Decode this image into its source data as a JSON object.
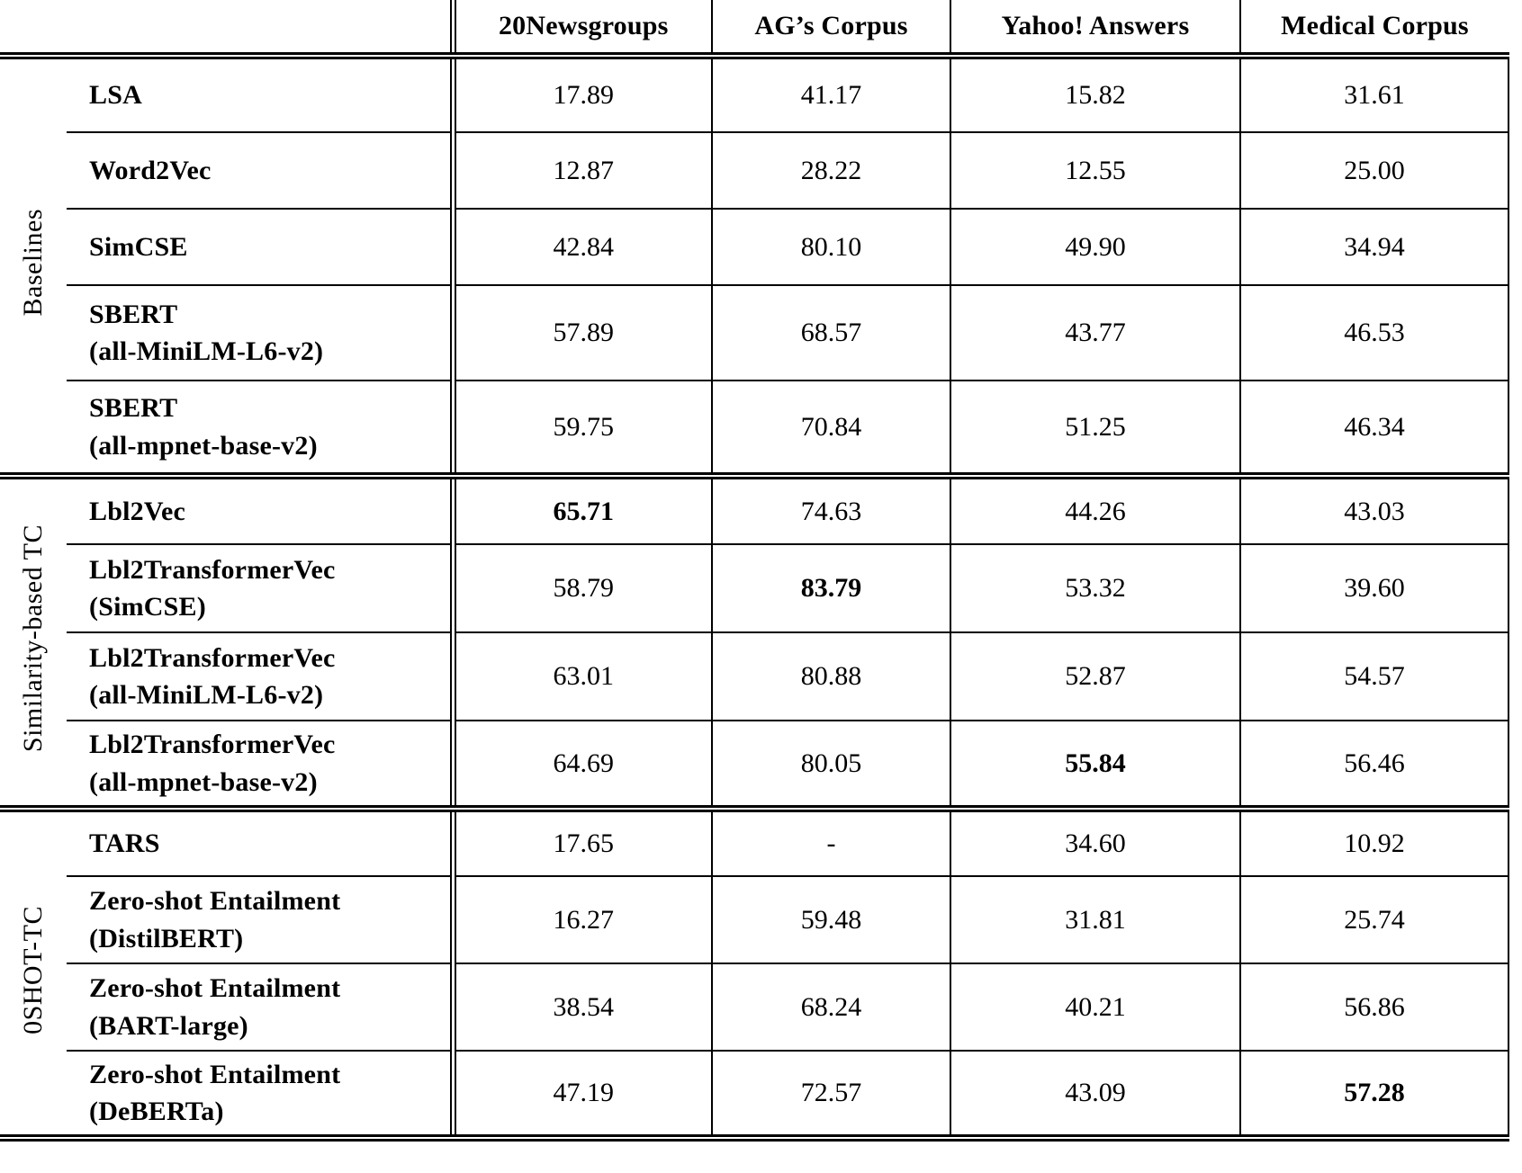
{
  "table": {
    "header": {
      "columns": [
        "20Newsgroups",
        "AG’s Corpus",
        "Yahoo! Answers",
        "Medical Corpus"
      ]
    },
    "groups": [
      {
        "label": "Baselines",
        "rows": [
          {
            "method": "LSA",
            "values": [
              "17.89",
              "41.17",
              "15.82",
              "31.61"
            ],
            "bold_cols": []
          },
          {
            "method": "Word2Vec",
            "values": [
              "12.87",
              "28.22",
              "12.55",
              "25.00"
            ],
            "bold_cols": []
          },
          {
            "method": "SimCSE",
            "values": [
              "42.84",
              "80.10",
              "49.90",
              "34.94"
            ],
            "bold_cols": []
          },
          {
            "method": "SBERT\n(all-MiniLM-L6-v2)",
            "values": [
              "57.89",
              "68.57",
              "43.77",
              "46.53"
            ],
            "bold_cols": []
          },
          {
            "method": "SBERT\n(all-mpnet-base-v2)",
            "values": [
              "59.75",
              "70.84",
              "51.25",
              "46.34"
            ],
            "bold_cols": []
          }
        ]
      },
      {
        "label": "Similarity-based TC",
        "rows": [
          {
            "method": "Lbl2Vec",
            "values": [
              "65.71",
              "74.63",
              "44.26",
              "43.03"
            ],
            "bold_cols": [
              0
            ]
          },
          {
            "method": "Lbl2TransformerVec\n(SimCSE)",
            "values": [
              "58.79",
              "83.79",
              "53.32",
              "39.60"
            ],
            "bold_cols": [
              1
            ]
          },
          {
            "method": "Lbl2TransformerVec\n(all-MiniLM-L6-v2)",
            "values": [
              "63.01",
              "80.88",
              "52.87",
              "54.57"
            ],
            "bold_cols": []
          },
          {
            "method": "Lbl2TransformerVec\n(all-mpnet-base-v2)",
            "values": [
              "64.69",
              "80.05",
              "55.84",
              "56.46"
            ],
            "bold_cols": [
              2
            ]
          }
        ]
      },
      {
        "label": "0SHOT-TC",
        "rows": [
          {
            "method": "TARS",
            "values": [
              "17.65",
              "-",
              "34.60",
              "10.92"
            ],
            "bold_cols": []
          },
          {
            "method": "Zero-shot Entailment\n(DistilBERT)",
            "values": [
              "16.27",
              "59.48",
              "31.81",
              "25.74"
            ],
            "bold_cols": []
          },
          {
            "method": "Zero-shot Entailment\n(BART-large)",
            "values": [
              "38.54",
              "68.24",
              "40.21",
              "56.86"
            ],
            "bold_cols": []
          },
          {
            "method": "Zero-shot Entailment\n(DeBERTa)",
            "values": [
              "47.19",
              "72.57",
              "43.09",
              "57.28"
            ],
            "bold_cols": [
              3
            ]
          }
        ]
      }
    ]
  }
}
